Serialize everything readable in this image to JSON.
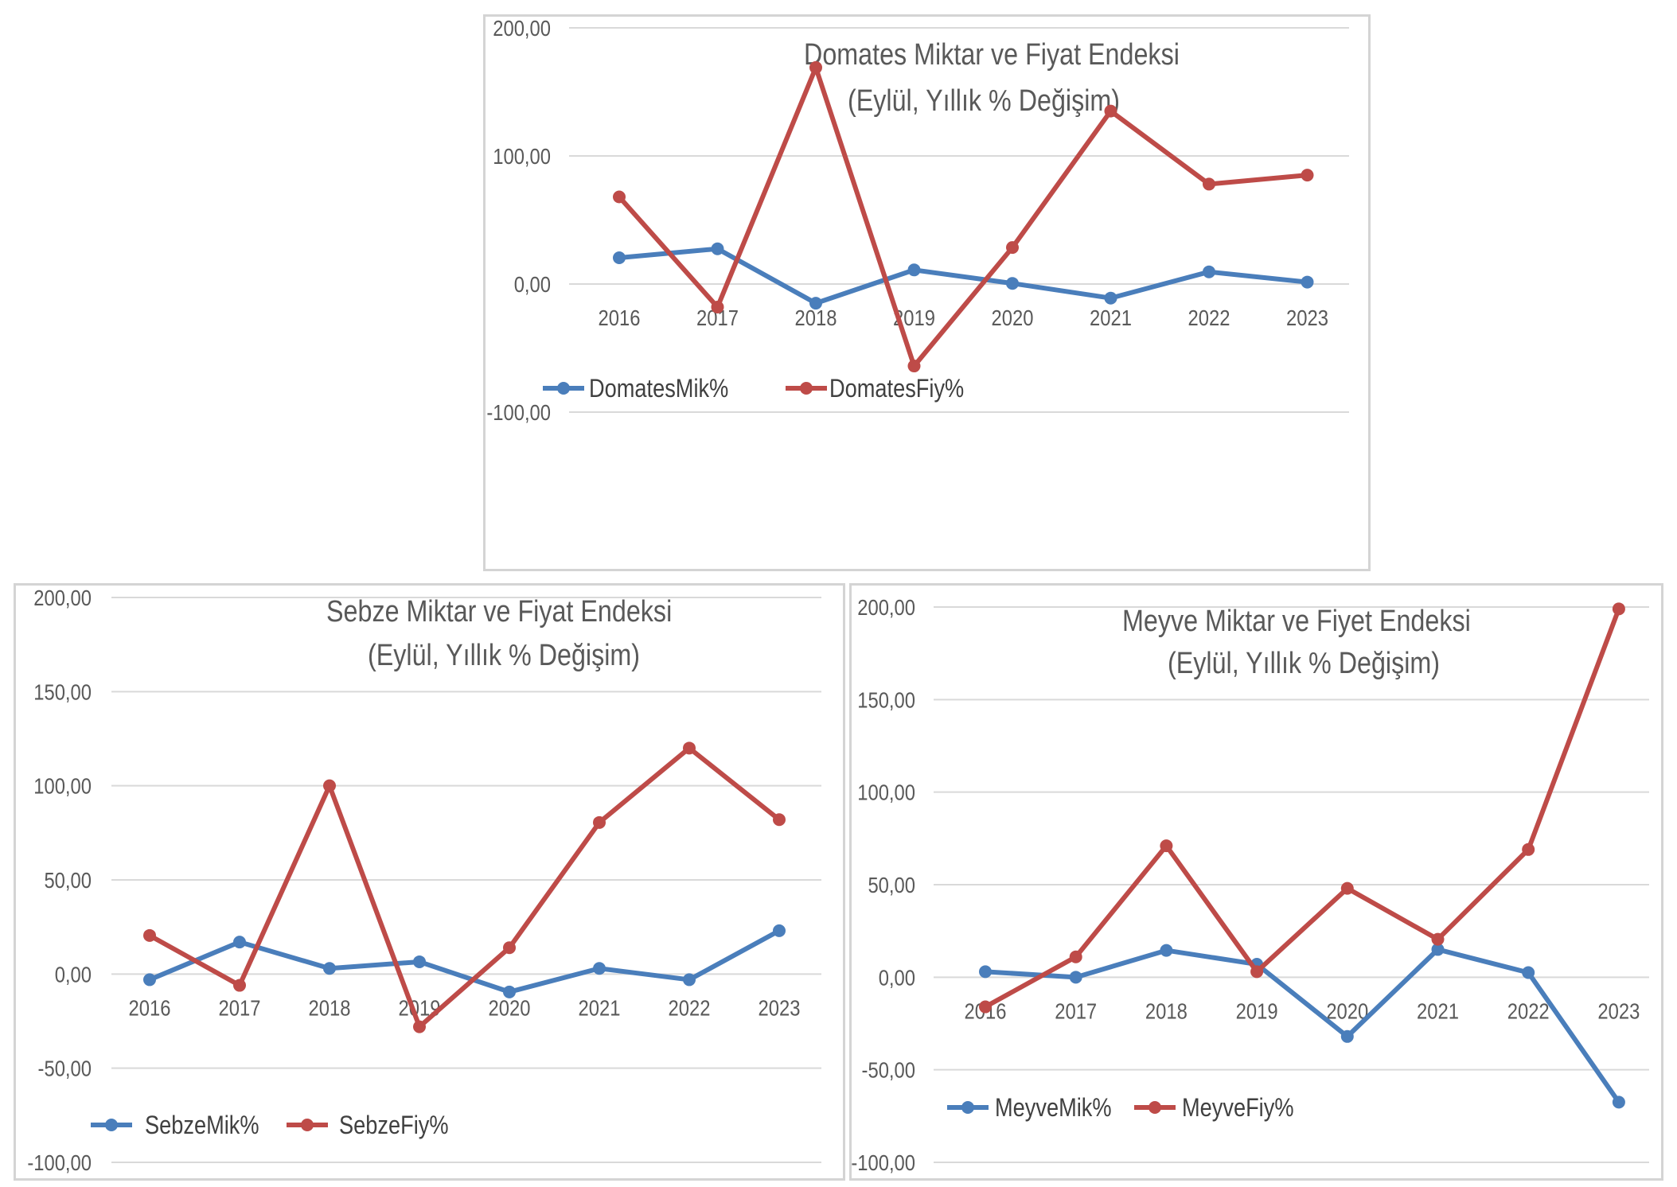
{
  "colors": {
    "mik": "#4a7ebb",
    "fiy": "#be4b48",
    "grid": "#d9d9d9",
    "text": "#595959"
  },
  "chart_data": [
    {
      "type": "line",
      "title": "Domates Miktar ve Fiyat Endeksi",
      "subtitle": "(Eylül, Yıllık % Değişim)",
      "categories": [
        "2016",
        "2017",
        "2018",
        "2019",
        "2020",
        "2021",
        "2022",
        "2023"
      ],
      "series": [
        {
          "name": "DomatesMik%",
          "color": "#4a7ebb",
          "values": [
            20.5,
            27.5,
            -15.0,
            11.0,
            0.5,
            -11.0,
            9.5,
            1.5
          ]
        },
        {
          "name": "DomatesFiy%",
          "color": "#be4b48",
          "values": [
            68.0,
            -18.0,
            169.0,
            -64.0,
            28.5,
            135.0,
            78.0,
            85.0
          ]
        }
      ],
      "ylim": [
        -100,
        200
      ],
      "yticks": [
        200,
        100,
        0,
        -100
      ],
      "ytick_labels": [
        "200,00",
        "100,00",
        "0,00",
        "-100,00"
      ],
      "grid": true,
      "legend": "bottom-left"
    },
    {
      "type": "line",
      "title": "Sebze  Miktar ve Fiyat Endeksi",
      "subtitle": "(Eylül, Yıllık % Değişim)",
      "categories": [
        "2016",
        "2017",
        "2018",
        "2019",
        "2020",
        "2021",
        "2022",
        "2023"
      ],
      "series": [
        {
          "name": "SebzeMik%",
          "color": "#4a7ebb",
          "values": [
            -3.0,
            17.0,
            3.0,
            6.5,
            -9.5,
            3.0,
            -3.0,
            23.0
          ]
        },
        {
          "name": "SebzeFiy%",
          "color": "#be4b48",
          "values": [
            20.5,
            -6.0,
            100.0,
            -28.0,
            14.0,
            80.5,
            120.0,
            82.0
          ]
        }
      ],
      "ylim": [
        -100,
        200
      ],
      "yticks": [
        200,
        150,
        100,
        50,
        0,
        -50,
        -100
      ],
      "ytick_labels": [
        "200,00",
        "150,00",
        "100,00",
        "50,00",
        "0,00",
        "-50,00",
        "-100,00"
      ],
      "grid": true,
      "legend": "bottom-left"
    },
    {
      "type": "line",
      "title": "Meyve Miktar ve Fiyet Endeksi",
      "subtitle": "(Eylül, Yıllık % Değişim)",
      "categories": [
        "2016",
        "2017",
        "2018",
        "2019",
        "2020",
        "2021",
        "2022",
        "2023"
      ],
      "series": [
        {
          "name": "MeyveMik%",
          "color": "#4a7ebb",
          "values": [
            3.0,
            0.0,
            14.5,
            7.0,
            -32.0,
            15.0,
            2.5,
            -67.5
          ]
        },
        {
          "name": "MeyveFiy%",
          "color": "#be4b48",
          "values": [
            -16.0,
            11.0,
            71.0,
            3.0,
            48.0,
            20.5,
            69.0,
            199.0
          ]
        }
      ],
      "ylim": [
        -100,
        200
      ],
      "yticks": [
        200,
        150,
        100,
        50,
        0,
        -50,
        -100
      ],
      "ytick_labels": [
        "200,00",
        "150,00",
        "100,00",
        "50,00",
        "0,00",
        "-50,00",
        "-100,00"
      ],
      "grid": true,
      "legend": "bottom-left"
    }
  ]
}
